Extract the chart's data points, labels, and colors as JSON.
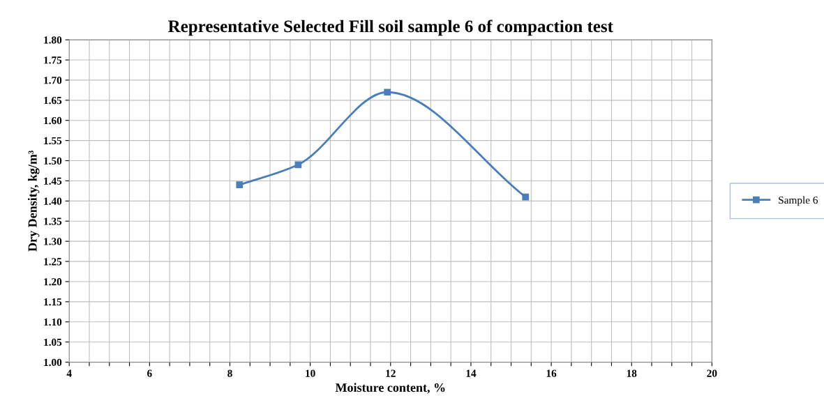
{
  "chart_data": {
    "type": "line",
    "title": "Representative Selected Fill soil sample 6 of compaction test",
    "xlabel": "Moisture content, %",
    "ylabel": "Dry Density, kg/m³",
    "x": [
      8.24,
      9.7,
      11.92,
      15.36
    ],
    "series": [
      {
        "name": "Sample 6",
        "color": "#4a7ebb",
        "values": [
          1.44,
          1.49,
          1.67,
          1.41
        ]
      }
    ],
    "xlim": [
      4,
      20
    ],
    "xticks": [
      4,
      {
        "value": 4.5,
        "label": null
      },
      {
        "value": 5,
        "label": null
      },
      {
        "value": 5.5,
        "label": null
      },
      6,
      {
        "value": 6.5,
        "label": null
      },
      {
        "value": 7,
        "label": null
      },
      {
        "value": 7.5,
        "label": null
      },
      8,
      {
        "value": 8.5,
        "label": null
      },
      {
        "value": 9,
        "label": null
      },
      {
        "value": 9.5,
        "label": null
      },
      10,
      {
        "value": 10.5,
        "label": null
      },
      {
        "value": 11,
        "label": null
      },
      {
        "value": 11.5,
        "label": null
      },
      12,
      {
        "value": 12.5,
        "label": null
      },
      {
        "value": 13,
        "label": null
      },
      {
        "value": 13.5,
        "label": null
      },
      14,
      {
        "value": 14.5,
        "label": null
      },
      {
        "value": 15,
        "label": null
      },
      {
        "value": 15.5,
        "label": null
      },
      16,
      {
        "value": 16.5,
        "label": null
      },
      {
        "value": 17,
        "label": null
      },
      {
        "value": 17.5,
        "label": null
      },
      18,
      {
        "value": 18.5,
        "label": null
      },
      {
        "value": 19,
        "label": null
      },
      {
        "value": 19.5,
        "label": null
      },
      20
    ],
    "ylim": [
      1.0,
      1.8
    ],
    "yticks": [
      {
        "value": 1.0,
        "label": "1.00"
      },
      {
        "value": 1.05,
        "label": "1.05"
      },
      {
        "value": 1.1,
        "label": "1.10"
      },
      {
        "value": 1.15,
        "label": "1.15"
      },
      {
        "value": 1.2,
        "label": "1.20"
      },
      {
        "value": 1.25,
        "label": "1.25"
      },
      {
        "value": 1.3,
        "label": "1.30"
      },
      {
        "value": 1.35,
        "label": "1.35"
      },
      {
        "value": 1.4,
        "label": "1.40"
      },
      {
        "value": 1.45,
        "label": "1.45"
      },
      {
        "value": 1.5,
        "label": "1.50"
      },
      {
        "value": 1.55,
        "label": "1.55"
      },
      {
        "value": 1.6,
        "label": "1.60"
      },
      {
        "value": 1.65,
        "label": "1.65"
      },
      {
        "value": 1.7,
        "label": "1.70"
      },
      {
        "value": 1.75,
        "label": "1.75"
      },
      {
        "value": 1.8,
        "label": "1.80"
      }
    ],
    "grid": true,
    "legend": "right",
    "marker": "square",
    "line_style": "solid"
  }
}
